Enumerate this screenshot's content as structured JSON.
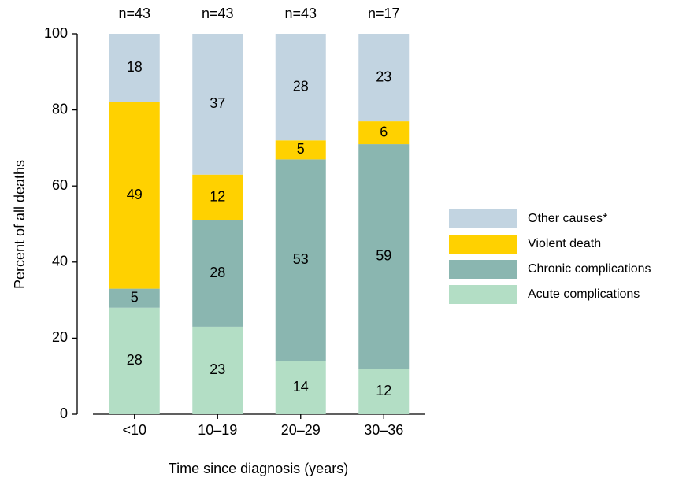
{
  "chart_data": {
    "type": "stacked-bar",
    "x_label": "Time since diagnosis (years)",
    "y_label": "Percent of all deaths",
    "categories": [
      "<10",
      "10–19",
      "20–29",
      "30–36"
    ],
    "bar_labels": [
      "n=43",
      "n=43",
      "n=43",
      "n=17"
    ],
    "series": [
      {
        "name": "Acute complications",
        "color": "#b3dec5",
        "values": [
          28,
          23,
          14,
          12
        ]
      },
      {
        "name": "Chronic complications",
        "color": "#8ab6b0",
        "values": [
          5,
          28,
          53,
          59
        ]
      },
      {
        "name": "Violent death",
        "color": "#ffd100",
        "values": [
          49,
          12,
          5,
          6
        ]
      },
      {
        "name": "Other causes*",
        "color": "#c2d4e1",
        "values": [
          18,
          37,
          28,
          23
        ]
      }
    ],
    "ylim": [
      0,
      100
    ],
    "yticks": [
      0,
      20,
      40,
      60,
      80,
      100
    ],
    "legend": "right"
  }
}
